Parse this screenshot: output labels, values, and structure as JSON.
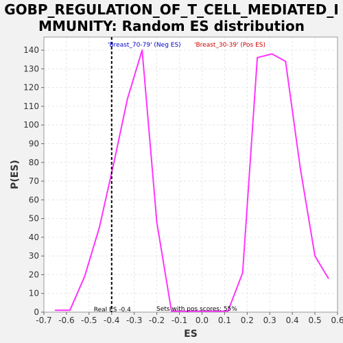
{
  "chart_data": {
    "type": "line",
    "title": "GOBP_REGULATION_OF_T_CELL_MEDIATED_I\nMMUNITY: Random ES distribution",
    "xlabel": "ES",
    "ylabel": "P(ES)",
    "xlim": [
      -0.7,
      0.6
    ],
    "ylim": [
      0,
      147
    ],
    "xticks": [
      -0.7,
      -0.6,
      -0.5,
      -0.4,
      -0.3,
      -0.2,
      -0.1,
      0.0,
      0.1,
      0.2,
      0.3,
      0.4,
      0.5,
      0.6
    ],
    "xtick_labels": [
      "-0.7",
      "-0.6",
      "-0.5",
      "-0.4",
      "-0.3",
      "-0.2",
      "-0.1",
      "0.0",
      "0.1",
      "0.2",
      "0.3",
      "0.4",
      "0.5",
      "0.6"
    ],
    "yticks": [
      0,
      10,
      20,
      30,
      40,
      50,
      60,
      70,
      80,
      90,
      100,
      110,
      120,
      130,
      140
    ],
    "ytick_labels": [
      "0",
      "10",
      "20",
      "30",
      "40",
      "50",
      "60",
      "70",
      "80",
      "90",
      "100",
      "110",
      "120",
      "130",
      "140"
    ],
    "grid": true,
    "line_color": "#ff33ff",
    "series": [
      {
        "x": [
          -0.65,
          -0.585,
          -0.52,
          -0.455,
          -0.39,
          -0.33,
          -0.265,
          -0.2,
          -0.135,
          -0.07,
          0.0,
          0.05,
          0.115,
          0.18,
          0.245,
          0.31,
          0.37,
          0.435,
          0.5,
          0.56
        ],
        "y": [
          1,
          1,
          19,
          45,
          80,
          114,
          140,
          48,
          0.5,
          0.5,
          0.5,
          0.5,
          0.5,
          21,
          136,
          138,
          134,
          77,
          30,
          18
        ]
      }
    ],
    "reference_line": {
      "x": -0.4,
      "label": "Real ES -0.4",
      "color": "#000000"
    },
    "annotation": "Sets with pos scores: 55%",
    "legend": [
      {
        "label": "'Breast_70-79' (Neg ES)",
        "color": "#0000cc"
      },
      {
        "label": "'Breast_30-39' (Pos ES)",
        "color": "#cc0000"
      }
    ]
  }
}
